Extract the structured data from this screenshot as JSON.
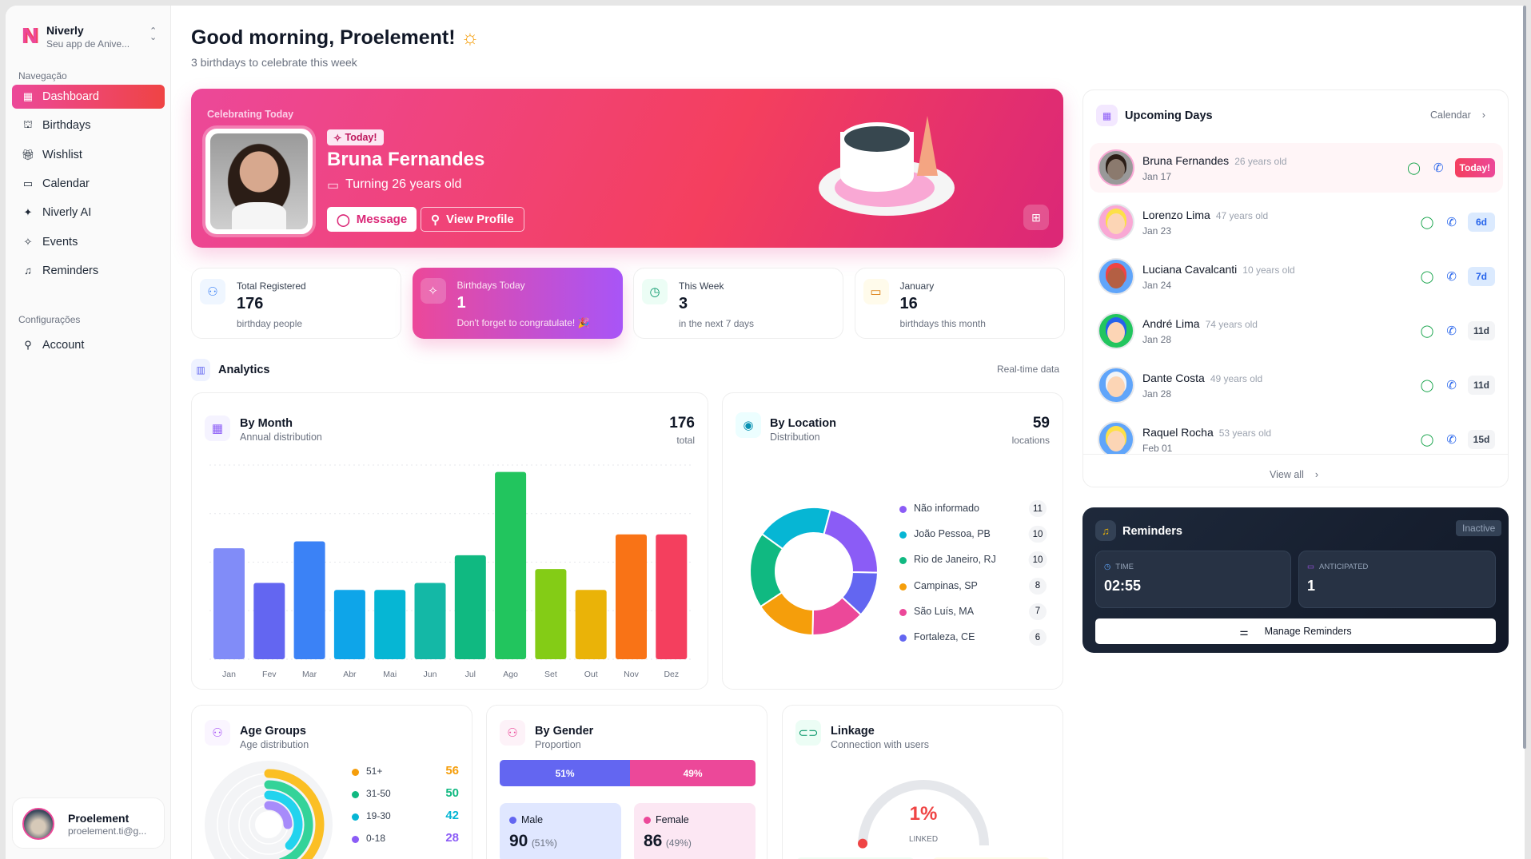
{
  "app": {
    "name": "Niverly",
    "tagline": "Seu app de Anive...",
    "logo_letter": "N"
  },
  "sidebar": {
    "nav_label": "Navegação",
    "items": [
      {
        "label": "Dashboard",
        "icon": "grid-icon",
        "glyph": "▦",
        "active": true
      },
      {
        "label": "Birthdays",
        "icon": "cake-icon",
        "glyph": "⛫"
      },
      {
        "label": "Wishlist",
        "icon": "gift-icon",
        "glyph": "🎁︎"
      },
      {
        "label": "Calendar",
        "icon": "calendar-icon",
        "glyph": "▭"
      },
      {
        "label": "Niverly AI",
        "icon": "sparkles-icon",
        "glyph": "✦"
      },
      {
        "label": "Events",
        "icon": "party-popper-icon",
        "glyph": "✧"
      },
      {
        "label": "Reminders",
        "icon": "bell-icon",
        "glyph": "♫"
      }
    ],
    "settings_label": "Configurações",
    "settings_items": [
      {
        "label": "Account",
        "icon": "user-icon",
        "glyph": "⚲"
      }
    ],
    "user": {
      "name": "Proelement",
      "email": "proelement.ti@g..."
    }
  },
  "header": {
    "title": "Good morning, Proelement!",
    "subtitle": "3 birthdays to celebrate this week"
  },
  "banner": {
    "eyebrow": "Celebrating Today",
    "badge": "Today!",
    "name": "Bruna Fernandes",
    "turning": "Turning 26 years old",
    "message": "Message",
    "view_profile": "View Profile"
  },
  "stats": [
    {
      "label": "Total Registered",
      "value": "176",
      "sub": "birthday people",
      "icon": "users-icon",
      "color": "#3b82f6",
      "bg": "#eff6ff"
    },
    {
      "label": "Birthdays Today",
      "value": "1",
      "sub": "Don't forget to congratulate! 🎉",
      "icon": "party-popper-icon",
      "highlight": true
    },
    {
      "label": "This Week",
      "value": "3",
      "sub": "in the next 7 days",
      "icon": "clock-icon",
      "color": "#059669",
      "bg": "#ecfdf5"
    },
    {
      "label": "January",
      "value": "16",
      "sub": "birthdays this month",
      "icon": "calendar-icon",
      "color": "#d97706",
      "bg": "#fffbeb"
    }
  ],
  "analytics": {
    "title": "Analytics",
    "note": "Real-time data"
  },
  "chart_data": [
    {
      "type": "bar",
      "title": "By Month",
      "subtitle": "Annual distribution",
      "total": "176",
      "total_label": "total",
      "categories": [
        "Jan",
        "Fev",
        "Mar",
        "Abr",
        "Mai",
        "Jun",
        "Jul",
        "Ago",
        "Set",
        "Out",
        "Nov",
        "Dez"
      ],
      "values": [
        16,
        11,
        17,
        10,
        10,
        11,
        15,
        27,
        13,
        10,
        18,
        18
      ],
      "colors": [
        "#818cf8",
        "#6366f1",
        "#3b82f6",
        "#0ea5e9",
        "#06b6d4",
        "#14b8a6",
        "#10b981",
        "#22c55e",
        "#84cc16",
        "#eab308",
        "#f97316",
        "#f43f5e"
      ],
      "ylim": [
        0,
        28
      ],
      "grid": true
    },
    {
      "type": "pie",
      "title": "By Location",
      "subtitle": "Distribution",
      "total": "59",
      "total_label": "locations",
      "legend": "right",
      "labels": [
        "Não informado",
        "João Pessoa, PB",
        "Rio de Janeiro, RJ",
        "Campinas, SP",
        "São Luís, MA",
        "Fortaleza, CE"
      ],
      "values": [
        11,
        10,
        10,
        8,
        7,
        6
      ],
      "colors": [
        "#8b5cf6",
        "#06b6d4",
        "#10b981",
        "#f59e0b",
        "#ec4899",
        "#6366f1"
      ]
    },
    {
      "type": "bar",
      "orientation": "radial",
      "title": "Age Groups",
      "subtitle": "Age distribution",
      "categories": [
        "51+",
        "31-50",
        "19-30",
        "0-18"
      ],
      "values": [
        56,
        50,
        42,
        28
      ],
      "colors": [
        "#fbbf24",
        "#34d399",
        "#22d3ee",
        "#a78bfa"
      ],
      "label_colors": [
        "#f59e0b",
        "#10b981",
        "#06b6d4",
        "#8b5cf6"
      ]
    }
  ],
  "gender": {
    "title": "By Gender",
    "subtitle": "Proportion",
    "male_pct": "51%",
    "female_pct": "49%",
    "male_label": "Male",
    "female_label": "Female",
    "male_count": "90",
    "female_count": "86",
    "male_sub": "(51%)",
    "female_sub": "(49%)",
    "male_share": 51
  },
  "linkage": {
    "title": "Linkage",
    "subtitle": "Connection with users",
    "value": "1%",
    "label": "LINKED",
    "fraction": 0.01
  },
  "upcoming": {
    "title": "Upcoming Days",
    "calendar_link": "Calendar",
    "view_all": "View all",
    "people": [
      {
        "name": "Bruna Fernandes",
        "age": "26 years old",
        "date": "Jan 17",
        "badge": "Today!",
        "kind": "today",
        "face": "#8b7a6e",
        "hair": "#2b1d16"
      },
      {
        "name": "Lorenzo Lima",
        "age": "47 years old",
        "date": "Jan 23",
        "badge": "6d",
        "kind": "soon",
        "face": "#fcd5b5",
        "hair": "#fde047",
        "bg": "#f9a8d4"
      },
      {
        "name": "Luciana Cavalcanti",
        "age": "10 years old",
        "date": "Jan 24",
        "badge": "7d",
        "kind": "soon",
        "face": "#b45f43",
        "hair": "#ef4444",
        "bg": "#60a5fa"
      },
      {
        "name": "André Lima",
        "age": "74 years old",
        "date": "Jan 28",
        "badge": "11d",
        "kind": "later",
        "face": "#fcd5b5",
        "hair": "#2563eb",
        "bg": "#22c55e"
      },
      {
        "name": "Dante Costa",
        "age": "49 years old",
        "date": "Jan 28",
        "badge": "11d",
        "kind": "later",
        "face": "#fcd5b5",
        "hair": "#f3f4f6",
        "bg": "#60a5fa"
      },
      {
        "name": "Raquel Rocha",
        "age": "53 years old",
        "date": "Feb 01",
        "badge": "15d",
        "kind": "later",
        "face": "#fcd5b5",
        "hair": "#fde047",
        "bg": "#60a5fa"
      }
    ]
  },
  "reminders": {
    "title": "Reminders",
    "status": "Inactive",
    "time_label": "TIME",
    "time": "02:55",
    "anticipated_label": "ANTICIPATED",
    "anticipated": "1",
    "manage": "Manage Reminders"
  }
}
